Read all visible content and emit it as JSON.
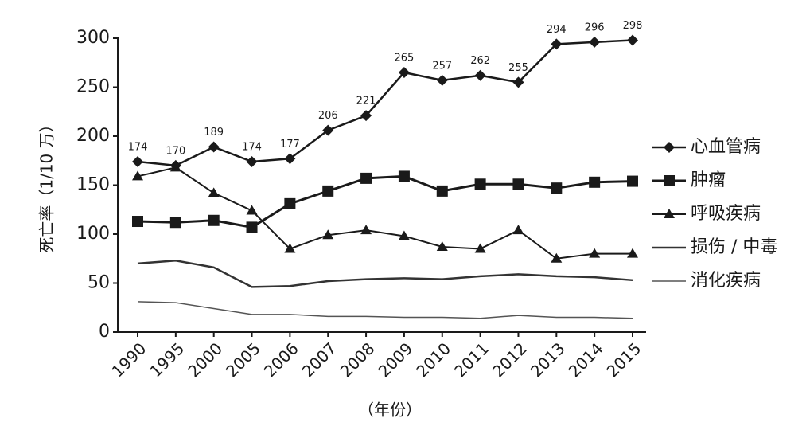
{
  "chart_data": {
    "type": "line",
    "x_label": "（年份）",
    "y_label": "死亡率（1/10 万）",
    "categories": [
      "1990",
      "1995",
      "2000",
      "2005",
      "2006",
      "2007",
      "2008",
      "2009",
      "2010",
      "2011",
      "2012",
      "2013",
      "2014",
      "2015"
    ],
    "ylim": [
      0,
      300
    ],
    "yticks": [
      0,
      50,
      100,
      150,
      200,
      250,
      300
    ],
    "grid": false,
    "legend": "right",
    "series": [
      {
        "name": "心血管病",
        "color": "#1a1a1a",
        "marker": "diamond",
        "show_labels": true,
        "values": [
          174,
          170,
          189,
          174,
          177,
          206,
          221,
          265,
          257,
          262,
          255,
          294,
          296,
          298
        ]
      },
      {
        "name": "肿瘤",
        "color": "#1a1a1a",
        "marker": "square",
        "values": [
          113,
          112,
          114,
          107,
          131,
          144,
          157,
          159,
          144,
          151,
          151,
          147,
          153,
          154
        ]
      },
      {
        "name": "呼吸疾病",
        "color": "#1a1a1a",
        "marker": "triangle",
        "values": [
          159,
          168,
          142,
          124,
          85,
          99,
          104,
          98,
          87,
          85,
          104,
          75,
          80,
          80
        ]
      },
      {
        "name": "损伤 / 中毒",
        "color": "#333333",
        "marker": "none",
        "values": [
          70,
          73,
          66,
          46,
          47,
          52,
          54,
          55,
          54,
          57,
          59,
          57,
          56,
          53
        ]
      },
      {
        "name": "消化疾病",
        "color": "#555555",
        "marker": "none",
        "values": [
          31,
          30,
          24,
          18,
          18,
          16,
          16,
          15,
          15,
          14,
          17,
          15,
          15,
          14
        ]
      }
    ]
  }
}
